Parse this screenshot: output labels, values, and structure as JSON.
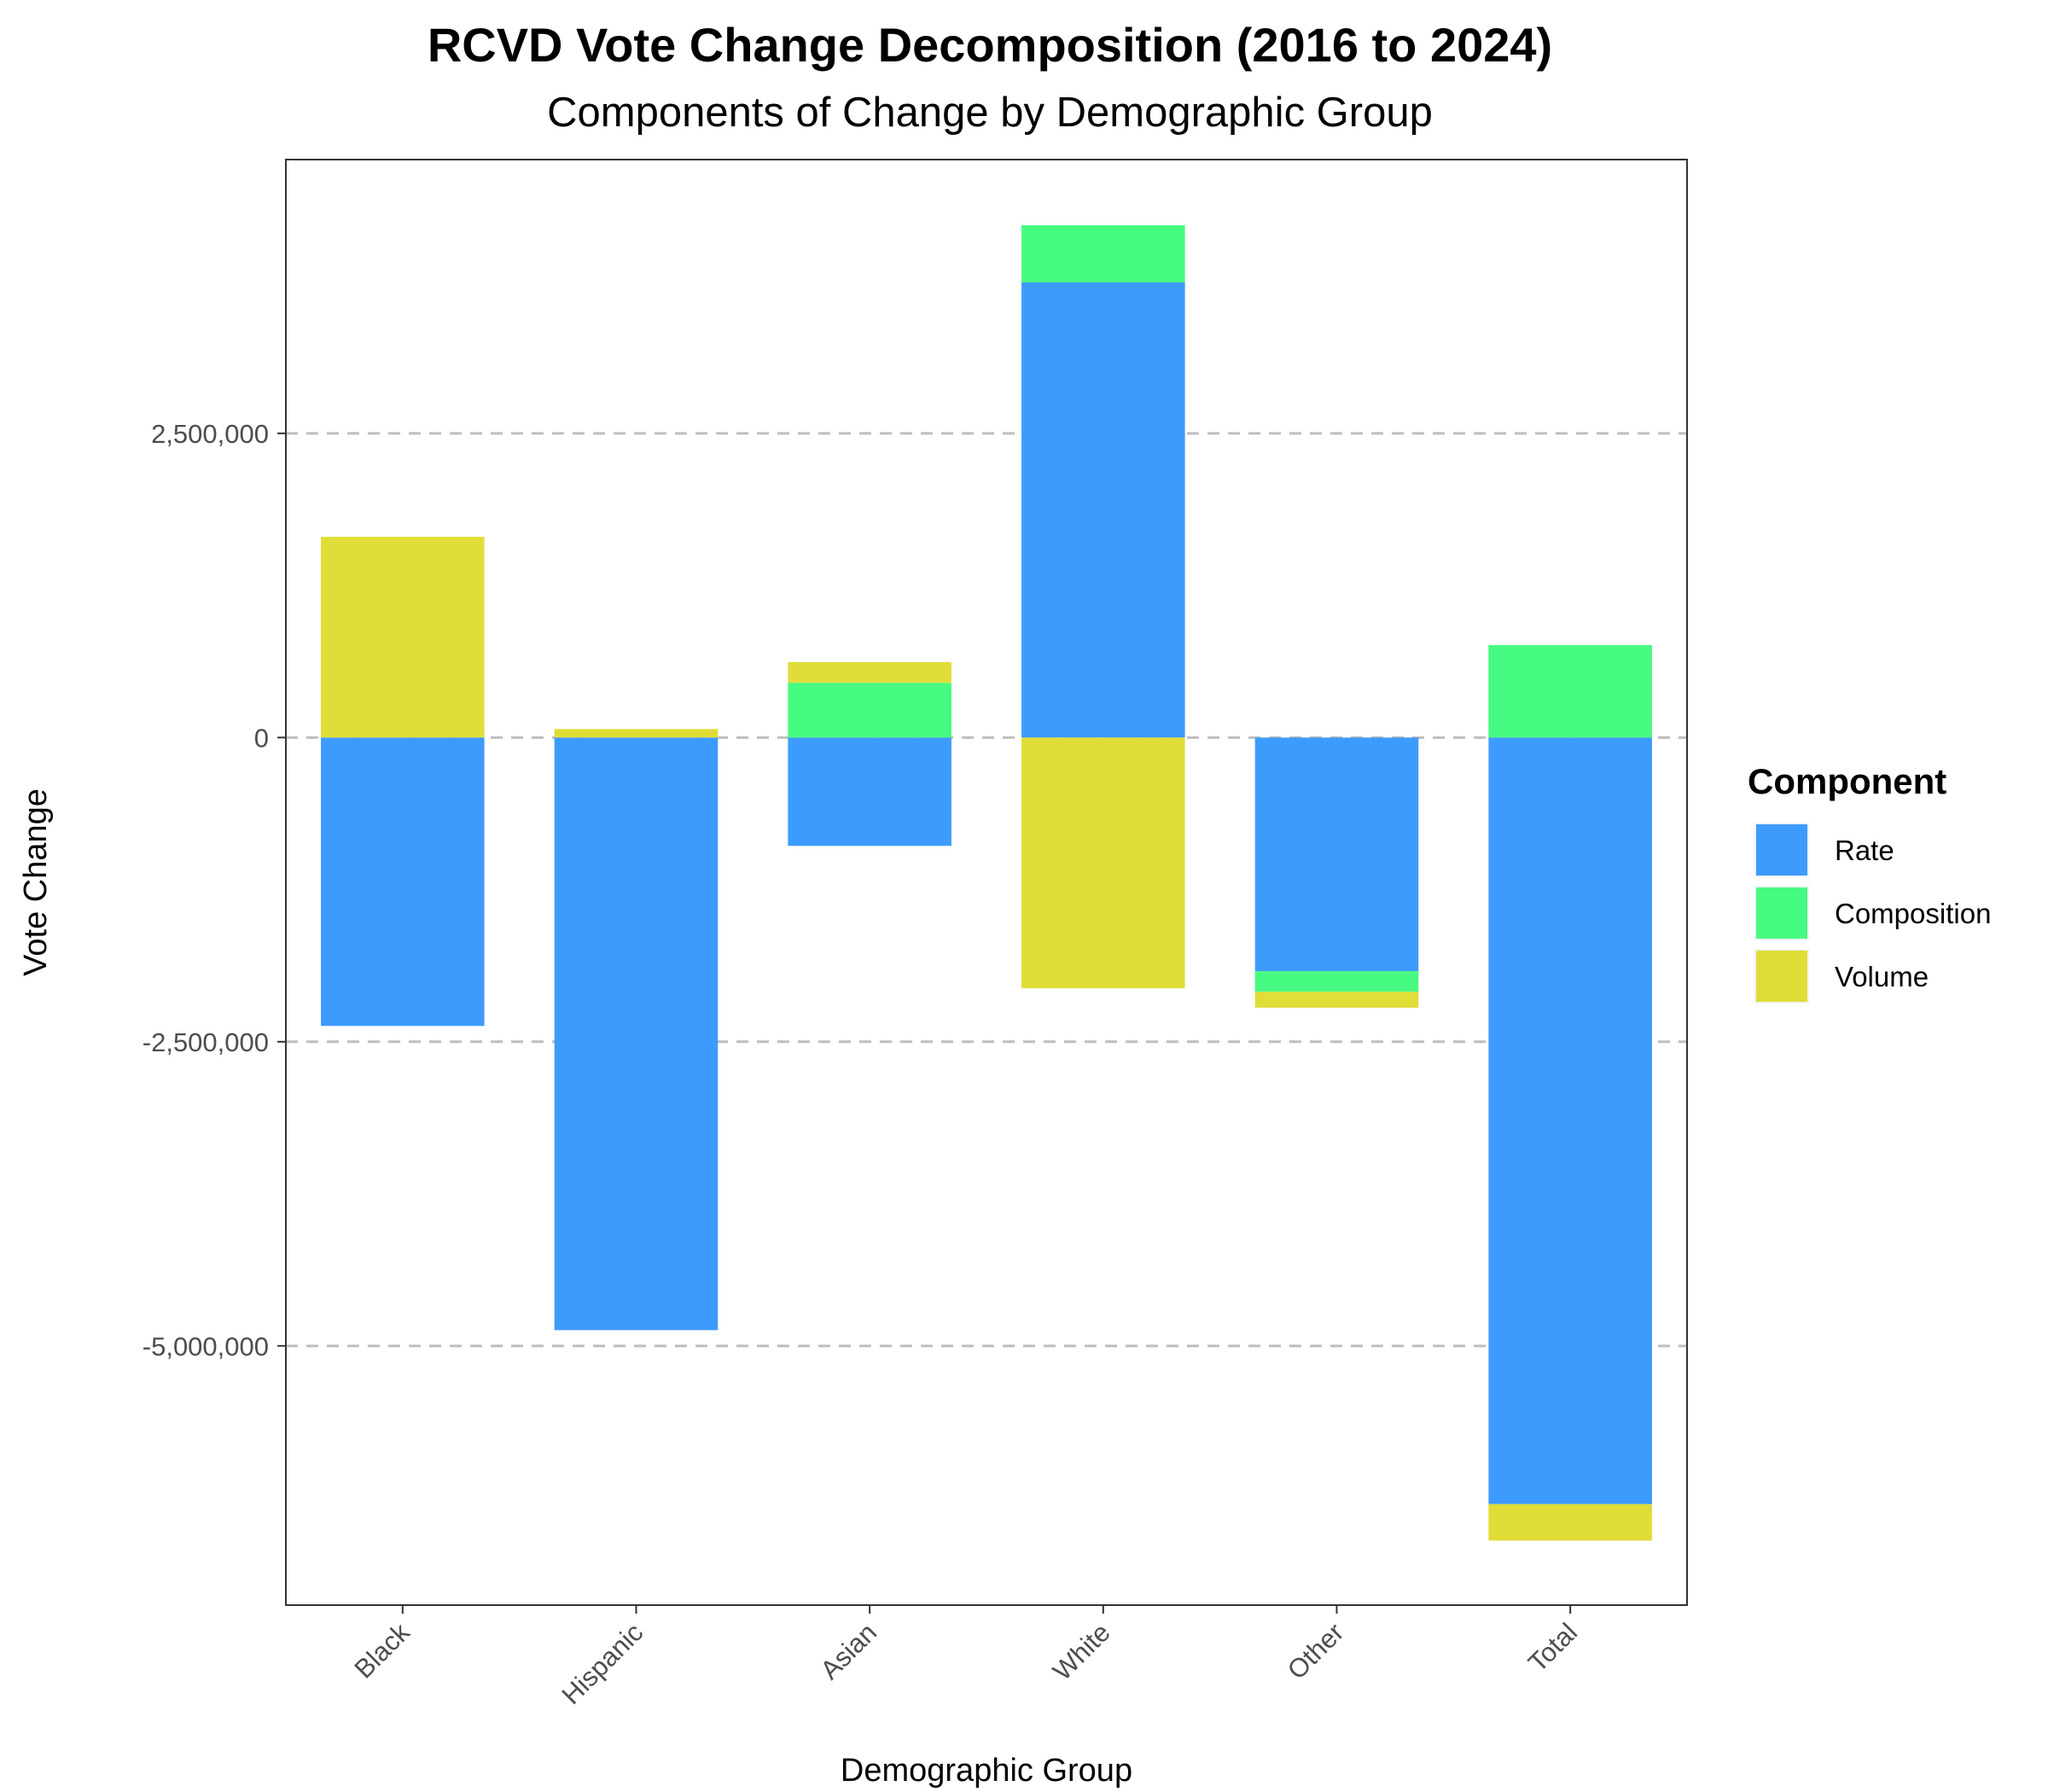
{
  "chart_data": {
    "type": "bar",
    "stacked": "diverging",
    "title": "RCVD Vote Change Decomposition (2016 to 2024)",
    "subtitle": "Components of Change by Demographic Group",
    "xlabel": "Demographic Group",
    "ylabel": "Vote Change",
    "categories": [
      "Black",
      "Hispanic",
      "Asian",
      "White",
      "Other",
      "Total"
    ],
    "series": [
      {
        "name": "Rate",
        "color": "#3d9bfd",
        "values": [
          -2370000,
          -4870000,
          -890000,
          3740000,
          -1920000,
          -6300000
        ]
      },
      {
        "name": "Composition",
        "color": "#47fa81",
        "values": [
          0,
          0,
          450000,
          470000,
          -170000,
          760000
        ]
      },
      {
        "name": "Volume",
        "color": "#e0dd38",
        "values": [
          1650000,
          70000,
          170000,
          -2060000,
          -130000,
          -300000
        ]
      }
    ],
    "ylim": [
      -7130000,
      4750000
    ],
    "yticks": [
      -5000000,
      -2500000,
      0,
      2500000
    ],
    "ytick_labels": [
      "-5,000,000",
      "-2,500,000",
      "0",
      "2,500,000"
    ],
    "grid": "horizontal dashed major lines",
    "legend": {
      "title": "Component",
      "position": "right",
      "entries": [
        "Rate",
        "Composition",
        "Volume"
      ]
    }
  }
}
